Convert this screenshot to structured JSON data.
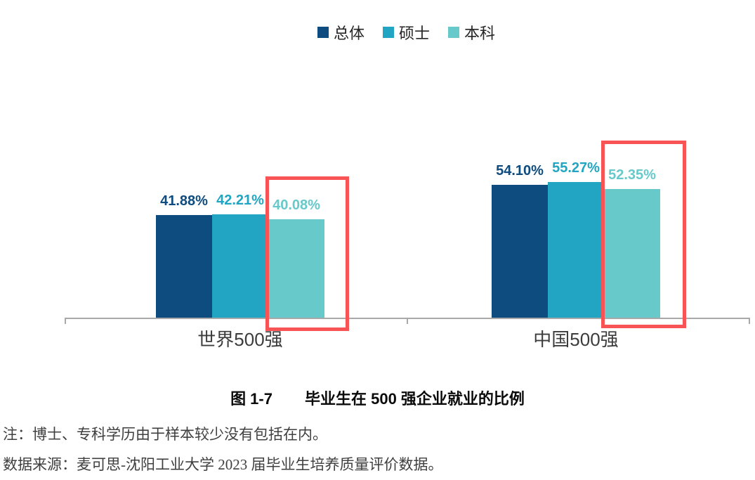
{
  "legend": {
    "position": "top-center",
    "items": [
      {
        "label": "总体",
        "color": "#0e4b7e"
      },
      {
        "label": "硕士",
        "color": "#21a5c2"
      },
      {
        "label": "本科",
        "color": "#68c9cb"
      }
    ]
  },
  "chart_data": {
    "type": "bar",
    "title": "毕业生在 500 强企业就业的比例",
    "categories": [
      "世界500强",
      "中国500强"
    ],
    "series": [
      {
        "name": "总体",
        "color": "#0e4b7e",
        "values": [
          41.88,
          54.1
        ],
        "labels": [
          "41.88%",
          "54.10%"
        ]
      },
      {
        "name": "硕士",
        "color": "#21a5c2",
        "values": [
          42.21,
          55.27
        ],
        "labels": [
          "42.21%",
          "55.27%"
        ]
      },
      {
        "name": "本科",
        "color": "#68c9cb",
        "values": [
          40.08,
          52.35
        ],
        "labels": [
          "40.08%",
          "52.35%"
        ]
      }
    ],
    "unit": "%",
    "value_axis_visible": false,
    "grid": false,
    "value_labels_shown": true,
    "highlight": {
      "series": "本科",
      "style": "red-box",
      "color": "#f85456"
    },
    "axis_color": "#a9a9a9"
  },
  "caption": {
    "number": "图 1-7",
    "title": "毕业生在 500 强企业就业的比例"
  },
  "notes": {
    "note": "注：博士、专科学历由于样本较少没有包括在内。",
    "source": "数据来源：麦可思-沈阳工业大学 2023 届毕业生培养质量评价数据。"
  }
}
